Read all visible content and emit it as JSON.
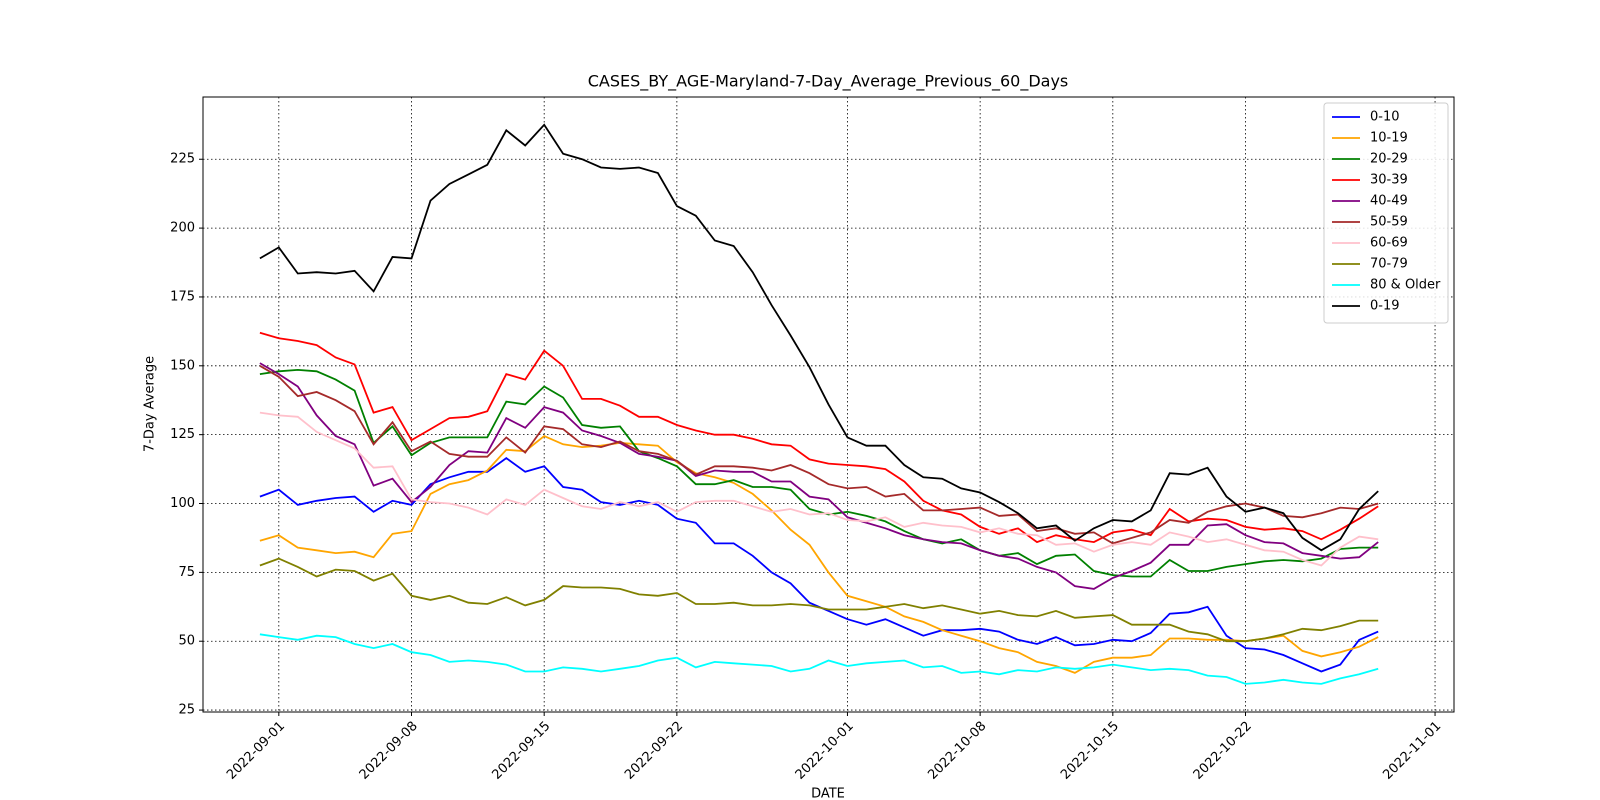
{
  "chart_data": {
    "type": "line",
    "title": "CASES_BY_AGE-Maryland-7-Day_Average_Previous_60_Days",
    "x_label": "DATE",
    "y_label": "7-Day Average",
    "x": [
      "2022-08-31",
      "2022-09-01",
      "2022-09-02",
      "2022-09-03",
      "2022-09-04",
      "2022-09-05",
      "2022-09-06",
      "2022-09-07",
      "2022-09-08",
      "2022-09-09",
      "2022-09-10",
      "2022-09-11",
      "2022-09-12",
      "2022-09-13",
      "2022-09-14",
      "2022-09-15",
      "2022-09-16",
      "2022-09-17",
      "2022-09-18",
      "2022-09-19",
      "2022-09-20",
      "2022-09-21",
      "2022-09-22",
      "2022-09-23",
      "2022-09-24",
      "2022-09-25",
      "2022-09-26",
      "2022-09-27",
      "2022-09-28",
      "2022-09-29",
      "2022-09-30",
      "2022-10-01",
      "2022-10-02",
      "2022-10-03",
      "2022-10-04",
      "2022-10-05",
      "2022-10-06",
      "2022-10-07",
      "2022-10-08",
      "2022-10-09",
      "2022-10-10",
      "2022-10-11",
      "2022-10-12",
      "2022-10-13",
      "2022-10-14",
      "2022-10-15",
      "2022-10-16",
      "2022-10-17",
      "2022-10-18",
      "2022-10-19",
      "2022-10-20",
      "2022-10-21",
      "2022-10-22",
      "2022-10-23",
      "2022-10-24",
      "2022-10-25",
      "2022-10-26",
      "2022-10-27",
      "2022-10-28",
      "2022-10-29"
    ],
    "xlim": [
      "2022-08-28",
      "2022-11-02"
    ],
    "xticks": [
      "2022-09-01",
      "2022-09-08",
      "2022-09-15",
      "2022-09-22",
      "2022-10-01",
      "2022-10-08",
      "2022-10-15",
      "2022-10-22",
      "2022-11-01"
    ],
    "ylim": [
      24.3,
      247.6
    ],
    "yticks": [
      25,
      50,
      75,
      100,
      125,
      150,
      175,
      200,
      225
    ],
    "grid": true,
    "legend": "upper right",
    "series": [
      {
        "name": "0-10",
        "color": "#0000ff",
        "values": [
          102.5,
          105,
          99.5,
          101,
          102,
          102.5,
          97,
          101,
          99.5,
          107,
          109.5,
          111.5,
          111.5,
          116.5,
          111.5,
          113.5,
          106,
          105,
          100.5,
          99.5,
          101,
          99.5,
          94.5,
          93,
          85.5,
          85.5,
          81,
          75,
          71,
          64,
          61,
          58,
          56,
          58,
          55,
          52,
          54,
          54,
          54.5,
          53.5,
          50.5,
          49,
          51.5,
          48.5,
          49,
          50.5,
          50,
          53,
          60,
          60.5,
          62.5,
          52,
          47.5,
          47,
          45,
          42,
          39,
          41.5,
          50.5,
          53.5
        ]
      },
      {
        "name": "10-19",
        "color": "#ffa500",
        "values": [
          86.5,
          88.5,
          84,
          83,
          82,
          82.5,
          80.5,
          89,
          90,
          103.5,
          107,
          108.5,
          112,
          119.5,
          119,
          124.5,
          121.5,
          120.5,
          121,
          122,
          121.5,
          121,
          115,
          111,
          109.5,
          107.5,
          103.5,
          97.5,
          90.5,
          85,
          75,
          66.5,
          64.5,
          62.5,
          59,
          57,
          54,
          52,
          50,
          47.5,
          46,
          42.5,
          41,
          38.5,
          42.5,
          44,
          44,
          45,
          51,
          51,
          50.5,
          50.5,
          50,
          51,
          52,
          46.5,
          44.5,
          46,
          48,
          51.5
        ]
      },
      {
        "name": "20-29",
        "color": "#008000",
        "values": [
          147,
          148,
          148.5,
          148,
          145,
          141,
          122,
          128,
          117.5,
          122,
          124,
          124,
          124,
          137,
          136,
          142.5,
          138.5,
          128.5,
          127.5,
          128,
          119,
          116.5,
          113.5,
          107,
          107,
          108.5,
          106,
          106,
          105,
          98,
          96,
          97,
          95.5,
          93.5,
          90,
          87,
          85.5,
          87,
          83,
          81,
          82,
          78,
          81,
          81.5,
          75.5,
          74,
          73.5,
          73.5,
          79.5,
          75.5,
          75.5,
          77,
          78,
          79,
          79.5,
          79,
          80,
          83.5,
          84,
          84
        ]
      },
      {
        "name": "30-39",
        "color": "#ff0000",
        "values": [
          162,
          160,
          159,
          157.5,
          153,
          150.5,
          133,
          135,
          123,
          127,
          131,
          131.5,
          133.5,
          147,
          145,
          155.5,
          150,
          138,
          138,
          135.5,
          131.5,
          131.5,
          128.5,
          126.5,
          125,
          125,
          123.5,
          121.5,
          121,
          116,
          114.5,
          114,
          113.5,
          112.5,
          108,
          101,
          97.5,
          96,
          91.5,
          89,
          91,
          86,
          88.5,
          87,
          86,
          89.5,
          90.5,
          88.5,
          98,
          93.5,
          94.5,
          94,
          91.5,
          90.5,
          91,
          90,
          87,
          90.5,
          94.5,
          99
        ]
      },
      {
        "name": "40-49",
        "color": "#800080",
        "values": [
          151,
          147,
          142.5,
          132,
          124.5,
          121.5,
          106.5,
          109,
          100.5,
          106,
          114,
          119,
          118.5,
          131,
          127.5,
          135,
          133,
          126.5,
          124.5,
          122,
          118,
          117,
          115.5,
          110,
          112,
          111.5,
          111.5,
          108,
          108,
          102.5,
          101.5,
          95,
          93,
          91,
          88.5,
          87,
          86,
          85.5,
          83,
          81,
          80,
          77,
          75,
          70,
          69,
          73,
          75.5,
          78.5,
          85,
          85,
          92,
          92.5,
          88.5,
          86,
          85.5,
          82,
          81,
          80,
          80.5,
          86
        ]
      },
      {
        "name": "50-59",
        "color": "#a52a2a",
        "values": [
          150,
          146,
          139,
          140.5,
          137.5,
          133.5,
          121.5,
          129.5,
          119,
          122.5,
          118,
          117,
          117,
          124,
          118.5,
          128,
          127,
          121.5,
          120.5,
          122.5,
          119,
          118,
          115.5,
          110.5,
          113.5,
          113.5,
          113,
          112,
          114,
          111,
          107,
          105.5,
          106,
          102.5,
          103.5,
          97.5,
          97.5,
          98,
          98.5,
          95.5,
          96,
          90,
          91,
          89,
          89.5,
          85.5,
          87.5,
          89.5,
          94,
          93,
          97,
          99,
          100,
          98.5,
          95.5,
          95,
          96.5,
          98.5,
          98,
          100
        ]
      },
      {
        "name": "60-69",
        "color": "#ffc0cb",
        "values": [
          133,
          132,
          131.5,
          126,
          123,
          120,
          113,
          113.5,
          101.5,
          100.5,
          100,
          98.5,
          96,
          101.5,
          99.5,
          105,
          102,
          99,
          98,
          100.5,
          99,
          100.5,
          97,
          100.5,
          101,
          101,
          99,
          97,
          98,
          96,
          96.5,
          94,
          93.5,
          95,
          91.5,
          93,
          92,
          91.5,
          89.5,
          91,
          89,
          88.5,
          85,
          85.5,
          82.5,
          85,
          86,
          85,
          89.5,
          88,
          86,
          87,
          85,
          83,
          82.5,
          79.5,
          77.5,
          84,
          88,
          87
        ]
      },
      {
        "name": "70-79",
        "color": "#808000",
        "values": [
          77.5,
          80,
          77,
          73.5,
          76,
          75.5,
          72,
          74.5,
          66.5,
          65,
          66.5,
          64,
          63.5,
          66,
          63,
          65,
          70,
          69.5,
          69.5,
          69,
          67,
          66.5,
          67.5,
          63.5,
          63.5,
          64,
          63,
          63,
          63.5,
          63,
          61.5,
          61.5,
          61.5,
          62.5,
          63.5,
          62,
          63,
          61.5,
          60,
          61,
          59.5,
          59,
          61,
          58.5,
          59,
          59.5,
          56,
          56,
          56,
          53.5,
          52.5,
          50,
          50,
          51,
          52.5,
          54.5,
          54,
          55.5,
          57.5,
          57.5
        ]
      },
      {
        "name": "80 & Older",
        "color": "#00ffff",
        "values": [
          52.5,
          51.5,
          50.5,
          52,
          51.5,
          49,
          47.5,
          49,
          46,
          45,
          42.5,
          43,
          42.5,
          41.5,
          39,
          39,
          40.5,
          40,
          39,
          40,
          41,
          43,
          44,
          40.5,
          42.5,
          42,
          41.5,
          41,
          39,
          40,
          43,
          41,
          42,
          42.5,
          43,
          40.5,
          41,
          38.5,
          39,
          38,
          39.5,
          39,
          40.5,
          40,
          40.5,
          41.5,
          40.5,
          39.5,
          40,
          39.5,
          37.5,
          37,
          34.5,
          35,
          36,
          35,
          34.5,
          36.5,
          38,
          40
        ]
      },
      {
        "name": "0-19",
        "color": "#000000",
        "values": [
          189,
          193,
          183.5,
          184,
          183.5,
          184.5,
          177,
          189.5,
          189,
          210,
          216,
          219.5,
          223,
          235.5,
          230,
          237.5,
          227,
          225,
          222,
          221.5,
          222,
          220,
          208,
          204.5,
          195.5,
          193.5,
          184,
          172,
          161,
          149.5,
          136,
          124,
          121,
          121,
          114,
          109.5,
          109,
          105.5,
          104,
          100.5,
          96.5,
          91,
          92,
          86.5,
          91,
          94,
          93.5,
          97.5,
          111,
          110.5,
          113,
          102.5,
          97,
          98.5,
          96.5,
          87.5,
          83,
          87,
          98,
          104.5
        ]
      }
    ]
  }
}
